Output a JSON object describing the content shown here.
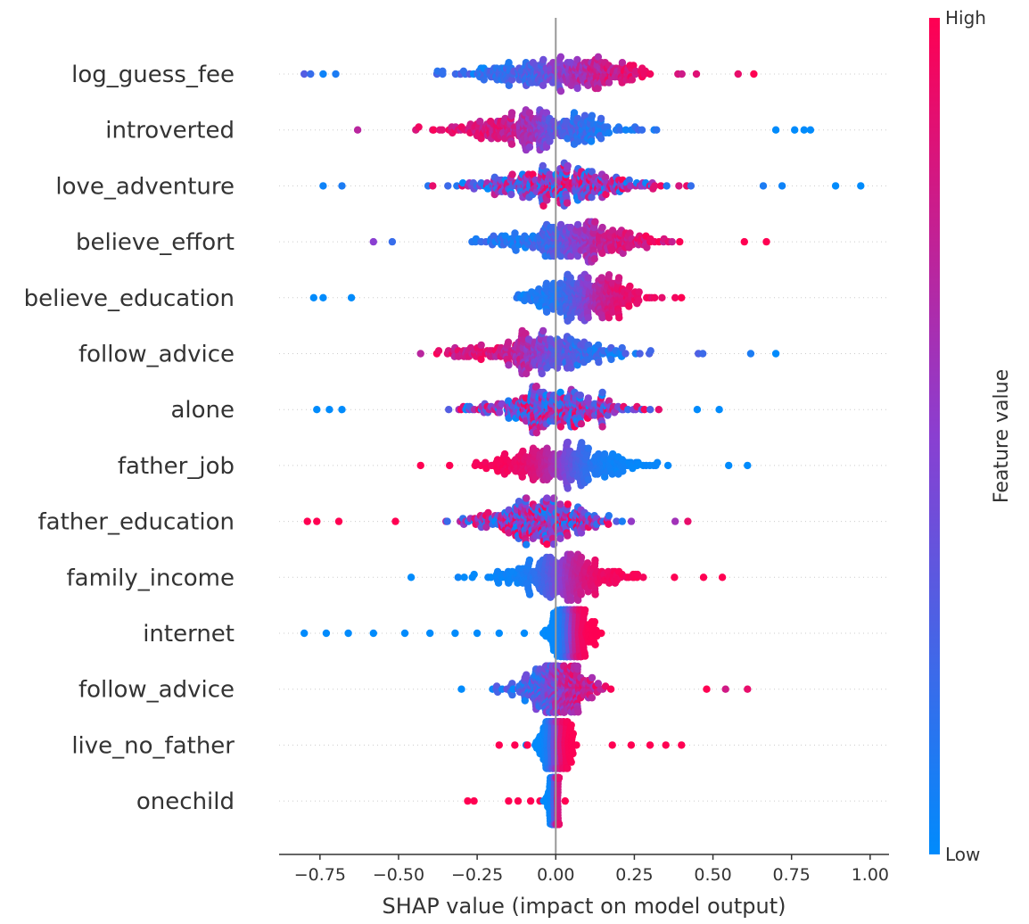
{
  "chart_data": {
    "type": "scatter",
    "subtype": "shap-beeswarm",
    "xlabel": "SHAP value (impact on model output)",
    "xlim": [
      -0.88,
      1.06
    ],
    "xticks": [
      -0.75,
      -0.5,
      -0.25,
      0.0,
      0.25,
      0.5,
      0.75,
      1.0
    ],
    "xtick_labels": [
      "−0.75",
      "−0.50",
      "−0.25",
      "0.00",
      "0.25",
      "0.50",
      "0.75",
      "1.00"
    ],
    "colorbar": {
      "title": "Feature value",
      "high_label": "High",
      "low_label": "Low",
      "high_color": "#ff0052",
      "low_color": "#008bfc"
    },
    "features": [
      {
        "name": "log_guess_fee",
        "min": -0.8,
        "max": 0.65,
        "center": 0.02,
        "spread": 0.28,
        "trend": 1,
        "mix": 0.7,
        "outliers": [
          {
            "x": -0.8,
            "v": 0.3
          },
          {
            "x": -0.78,
            "v": 0.2
          },
          {
            "x": -0.74,
            "v": 0.05
          },
          {
            "x": -0.7,
            "v": 0.1
          },
          {
            "x": 0.58,
            "v": 0.9
          },
          {
            "x": 0.63,
            "v": 1.0
          }
        ]
      },
      {
        "name": "introverted",
        "min": -0.63,
        "max": 0.81,
        "center": -0.05,
        "spread": 0.25,
        "trend": -1,
        "mix": 0.75,
        "outliers": [
          {
            "x": -0.63,
            "v": 0.7
          },
          {
            "x": 0.7,
            "v": 0.0
          },
          {
            "x": 0.76,
            "v": 0.0
          },
          {
            "x": 0.79,
            "v": 0.0
          },
          {
            "x": 0.81,
            "v": 0.0
          }
        ]
      },
      {
        "name": "love_adventure",
        "min": -0.74,
        "max": 0.98,
        "center": 0.0,
        "spread": 0.26,
        "trend": 0,
        "mix": 0.4,
        "outliers": [
          {
            "x": -0.74,
            "v": 0.05
          },
          {
            "x": -0.68,
            "v": 0.1
          },
          {
            "x": 0.66,
            "v": 0.1
          },
          {
            "x": 0.72,
            "v": 0.05
          },
          {
            "x": 0.89,
            "v": 0.0
          },
          {
            "x": 0.97,
            "v": 0.0
          }
        ]
      },
      {
        "name": "believe_effort",
        "min": -0.58,
        "max": 0.67,
        "center": 0.07,
        "spread": 0.24,
        "trend": 1,
        "mix": 0.75,
        "outliers": [
          {
            "x": -0.58,
            "v": 0.5
          },
          {
            "x": -0.52,
            "v": 0.2
          },
          {
            "x": 0.6,
            "v": 1.0
          },
          {
            "x": 0.67,
            "v": 1.0
          }
        ]
      },
      {
        "name": "believe_education",
        "min": -0.77,
        "max": 0.4,
        "center": 0.1,
        "spread": 0.18,
        "trend": 1,
        "mix": 0.85,
        "outliers": [
          {
            "x": -0.77,
            "v": 0.0
          },
          {
            "x": -0.74,
            "v": 0.0
          },
          {
            "x": -0.65,
            "v": 0.0
          },
          {
            "x": 0.38,
            "v": 0.95
          },
          {
            "x": 0.4,
            "v": 1.0
          }
        ]
      },
      {
        "name": "follow_advice",
        "min": -0.43,
        "max": 0.7,
        "center": -0.05,
        "spread": 0.24,
        "trend": -1,
        "mix": 0.7,
        "outliers": [
          {
            "x": -0.43,
            "v": 0.7
          },
          {
            "x": 0.62,
            "v": 0.1
          },
          {
            "x": 0.7,
            "v": 0.0
          }
        ]
      },
      {
        "name": "alone",
        "min": -0.76,
        "max": 0.52,
        "center": -0.02,
        "spread": 0.22,
        "trend": 0,
        "mix": 0.45,
        "outliers": [
          {
            "x": -0.76,
            "v": 0.0
          },
          {
            "x": -0.72,
            "v": 0.0
          },
          {
            "x": -0.68,
            "v": 0.0
          },
          {
            "x": 0.45,
            "v": 0.0
          },
          {
            "x": 0.52,
            "v": 0.0
          }
        ]
      },
      {
        "name": "father_job",
        "min": -0.43,
        "max": 0.61,
        "center": 0.02,
        "spread": 0.22,
        "trend": -1,
        "mix": 0.95,
        "outliers": [
          {
            "x": -0.43,
            "v": 1.0
          },
          {
            "x": 0.55,
            "v": 0.0
          },
          {
            "x": 0.61,
            "v": 0.0
          }
        ]
      },
      {
        "name": "father_education",
        "min": -0.79,
        "max": 0.44,
        "center": -0.05,
        "spread": 0.2,
        "trend": 0,
        "mix": 0.6,
        "outliers": [
          {
            "x": -0.79,
            "v": 1.0
          },
          {
            "x": -0.76,
            "v": 1.0
          },
          {
            "x": -0.69,
            "v": 1.0
          },
          {
            "x": -0.51,
            "v": 1.0
          },
          {
            "x": 0.38,
            "v": 0.6
          },
          {
            "x": 0.42,
            "v": 0.9
          }
        ]
      },
      {
        "name": "family_income",
        "min": -0.46,
        "max": 0.53,
        "center": 0.02,
        "spread": 0.2,
        "trend": 1,
        "mix": 0.95,
        "outliers": [
          {
            "x": -0.46,
            "v": 0.0
          },
          {
            "x": 0.47,
            "v": 1.0
          },
          {
            "x": 0.53,
            "v": 1.0
          }
        ]
      },
      {
        "name": "internet",
        "min": -0.8,
        "max": 0.19,
        "center": 0.05,
        "spread": 0.06,
        "trend": 1,
        "mix": 1.0,
        "outliers": [
          {
            "x": -0.8,
            "v": 0.0
          },
          {
            "x": -0.73,
            "v": 0.0
          },
          {
            "x": -0.66,
            "v": 0.0
          },
          {
            "x": -0.58,
            "v": 0.0
          },
          {
            "x": -0.48,
            "v": 0.0
          },
          {
            "x": -0.4,
            "v": 0.0
          },
          {
            "x": -0.32,
            "v": 0.0
          },
          {
            "x": -0.25,
            "v": 0.0
          },
          {
            "x": -0.18,
            "v": 0.0
          },
          {
            "x": -0.1,
            "v": 0.0
          },
          {
            "x": -0.04,
            "v": 0.0
          }
        ]
      },
      {
        "name": "follow_advice",
        "min": -0.3,
        "max": 0.61,
        "center": 0.0,
        "spread": 0.12,
        "trend": 1,
        "mix": 0.6,
        "outliers": [
          {
            "x": -0.3,
            "v": 0.0
          },
          {
            "x": 0.48,
            "v": 1.0
          },
          {
            "x": 0.54,
            "v": 0.8
          },
          {
            "x": 0.61,
            "v": 0.9
          }
        ]
      },
      {
        "name": "live_no_father",
        "min": -0.18,
        "max": 0.4,
        "center": 0.0,
        "spread": 0.05,
        "trend": 1,
        "mix": 1.0,
        "outliers": [
          {
            "x": -0.18,
            "v": 1.0
          },
          {
            "x": -0.13,
            "v": 1.0
          },
          {
            "x": -0.09,
            "v": 1.0
          },
          {
            "x": 0.18,
            "v": 1.0
          },
          {
            "x": 0.24,
            "v": 1.0
          },
          {
            "x": 0.3,
            "v": 1.0
          },
          {
            "x": 0.35,
            "v": 1.0
          },
          {
            "x": 0.4,
            "v": 1.0
          }
        ]
      },
      {
        "name": "onechild",
        "min": -0.28,
        "max": 0.04,
        "center": 0.0,
        "spread": 0.02,
        "trend": 1,
        "mix": 1.0,
        "outliers": [
          {
            "x": -0.28,
            "v": 1.0
          },
          {
            "x": -0.26,
            "v": 1.0
          },
          {
            "x": -0.15,
            "v": 1.0
          },
          {
            "x": -0.12,
            "v": 1.0
          },
          {
            "x": -0.08,
            "v": 1.0
          },
          {
            "x": -0.05,
            "v": 1.0
          },
          {
            "x": 0.03,
            "v": 1.0
          }
        ]
      }
    ]
  }
}
